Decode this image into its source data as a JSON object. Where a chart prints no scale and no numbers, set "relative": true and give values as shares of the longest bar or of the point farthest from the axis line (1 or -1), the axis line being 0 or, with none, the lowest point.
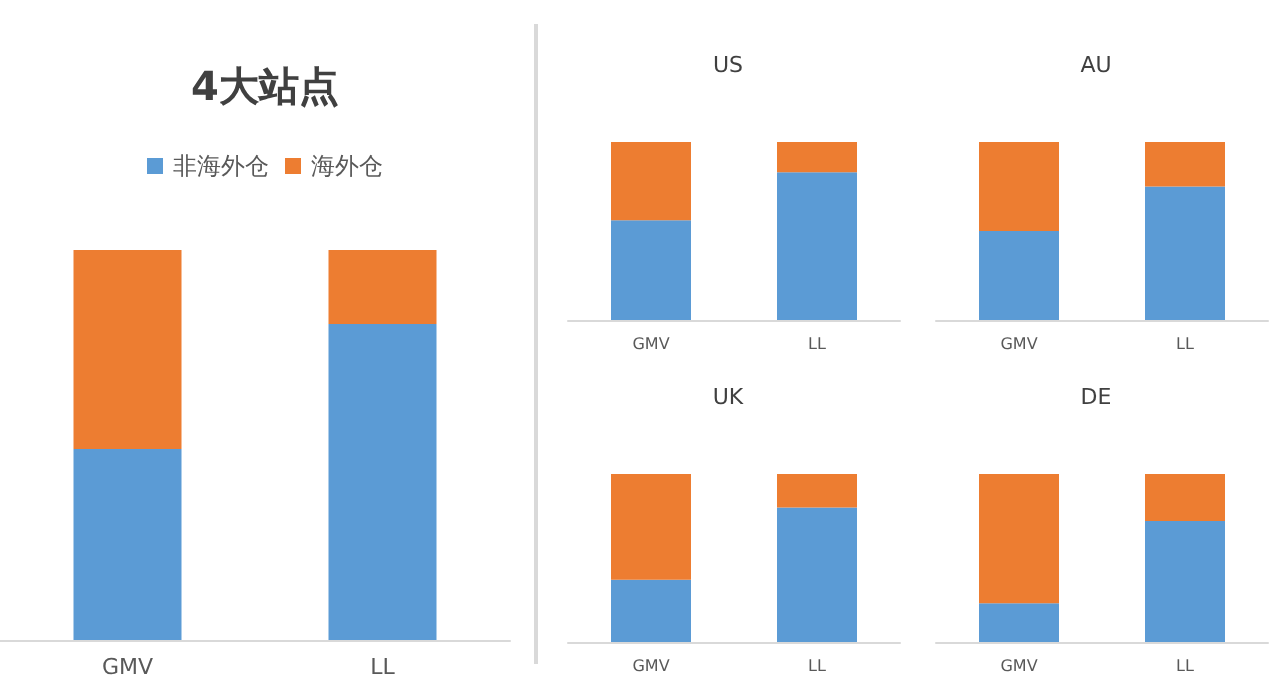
{
  "chart_data": [
    {
      "type": "bar",
      "title": "4大站点",
      "categories": [
        "GMV",
        "LL"
      ],
      "stacked": true,
      "relative": true,
      "legend": "top",
      "series": [
        {
          "name": "非海外仓",
          "color": "#5b9bd5",
          "values": [
            0.49,
            0.81
          ]
        },
        {
          "name": "海外仓",
          "color": "#ed7d31",
          "values": [
            0.51,
            0.19
          ]
        }
      ]
    },
    {
      "type": "bar",
      "title": "US",
      "categories": [
        "GMV",
        "LL"
      ],
      "stacked": true,
      "relative": true,
      "series": [
        {
          "color": "#5b9bd5",
          "values": [
            0.56,
            0.83
          ]
        },
        {
          "color": "#ed7d31",
          "values": [
            0.44,
            0.17
          ]
        }
      ]
    },
    {
      "type": "bar",
      "title": "AU",
      "categories": [
        "GMV",
        "LL"
      ],
      "stacked": true,
      "relative": true,
      "series": [
        {
          "color": "#5b9bd5",
          "values": [
            0.5,
            0.75
          ]
        },
        {
          "color": "#ed7d31",
          "values": [
            0.5,
            0.25
          ]
        }
      ]
    },
    {
      "type": "bar",
      "title": "UK",
      "categories": [
        "GMV",
        "LL"
      ],
      "stacked": true,
      "relative": true,
      "series": [
        {
          "color": "#5b9bd5",
          "values": [
            0.37,
            0.8
          ]
        },
        {
          "color": "#ed7d31",
          "values": [
            0.63,
            0.2
          ]
        }
      ]
    },
    {
      "type": "bar",
      "title": "DE",
      "categories": [
        "GMV",
        "LL"
      ],
      "stacked": true,
      "relative": true,
      "series": [
        {
          "color": "#5b9bd5",
          "values": [
            0.23,
            0.72
          ]
        },
        {
          "color": "#ed7d31",
          "values": [
            0.77,
            0.28
          ]
        }
      ]
    }
  ]
}
